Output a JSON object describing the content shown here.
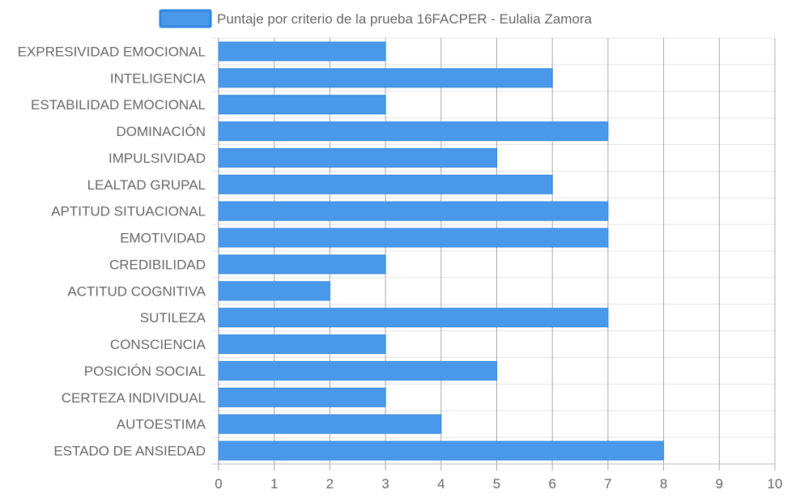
{
  "chart_data": {
    "type": "bar",
    "orientation": "horizontal",
    "categories": [
      "EXPRESIVIDAD EMOCIONAL",
      "INTELIGENCIA",
      "ESTABILIDAD EMOCIONAL",
      "DOMINACIÓN",
      "IMPULSIVIDAD",
      "LEALTAD GRUPAL",
      "APTITUD SITUACIONAL",
      "EMOTIVIDAD",
      "CREDIBILIDAD",
      "ACTITUD COGNITIVA",
      "SUTILEZA",
      "CONSCIENCIA",
      "POSICIÓN SOCIAL",
      "CERTEZA INDIVIDUAL",
      "AUTOESTIMA",
      "ESTADO DE ANSIEDAD"
    ],
    "series": [
      {
        "name": "Puntaje por criterio de la prueba 16FACPER - Eulalia Zamora",
        "values": [
          3,
          6,
          3,
          7,
          5,
          6,
          7,
          7,
          3,
          2,
          7,
          3,
          5,
          3,
          4,
          8
        ]
      }
    ],
    "xlim": [
      0,
      10
    ],
    "x_ticks": [
      "0",
      "1",
      "2",
      "3",
      "4",
      "5",
      "6",
      "7",
      "8",
      "9",
      "10"
    ],
    "grid": true,
    "legend_position": "top",
    "colors": {
      "bar_fill": "#4a98ea",
      "bar_border": "#2f86e0",
      "grid": "#e4e4e4",
      "grid_vertical": "#a8a8a8"
    }
  }
}
